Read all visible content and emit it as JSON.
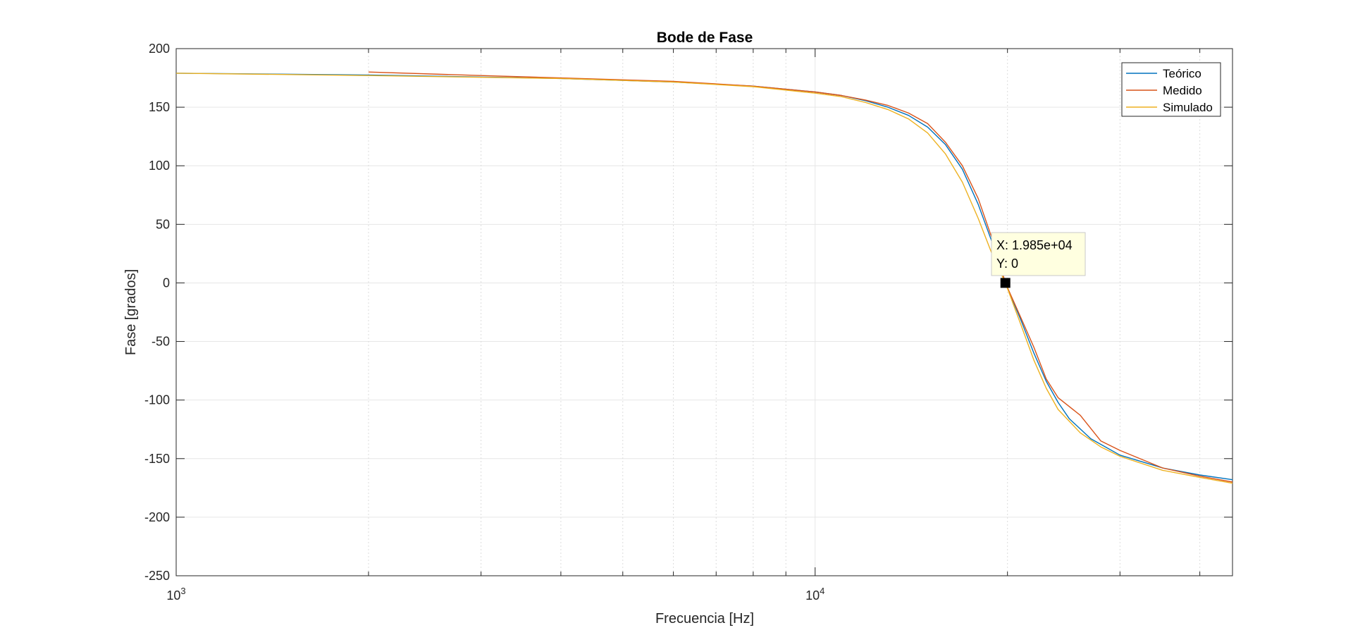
{
  "chart_data": {
    "type": "line",
    "title": "Bode de Fase",
    "xlabel": "Frecuencia [Hz]",
    "ylabel": "Fase [grados]",
    "xscale": "log",
    "xlim": [
      1000,
      45000
    ],
    "ylim": [
      -250,
      200
    ],
    "yticks": [
      200,
      150,
      100,
      50,
      0,
      -50,
      -100,
      -150,
      -200,
      -250
    ],
    "xticks": [
      {
        "value": 1000,
        "base": "10",
        "exp": "3"
      },
      {
        "value": 10000,
        "base": "10",
        "exp": "4"
      }
    ],
    "grid": true,
    "legend_position": "top-right",
    "series": [
      {
        "name": "Teórico",
        "color": "#0072BD",
        "x": [
          1000,
          2000,
          4000,
          6000,
          8000,
          10000,
          11000,
          12000,
          13000,
          14000,
          15000,
          16000,
          17000,
          18000,
          19000,
          19850,
          21000,
          22000,
          23000,
          24000,
          25000,
          27000,
          30000,
          35000,
          40000,
          45000
        ],
        "y": [
          179,
          177.5,
          174.5,
          171.5,
          168,
          163,
          160,
          155.5,
          150,
          143,
          133,
          118,
          97,
          67,
          32,
          0,
          -32,
          -60,
          -84,
          -102,
          -116,
          -133,
          -147,
          -158,
          -164,
          -168
        ]
      },
      {
        "name": "Medido",
        "color": "#D95319",
        "x": [
          2000,
          3000,
          4000,
          6000,
          8000,
          10000,
          11000,
          12000,
          13000,
          14000,
          15000,
          16000,
          17000,
          18000,
          19000,
          19850,
          21000,
          22000,
          23000,
          24000,
          26000,
          28000,
          30000,
          35000,
          40000,
          45000
        ],
        "y": [
          180,
          177,
          175,
          172,
          168,
          163,
          160,
          156,
          151.5,
          145,
          136,
          120,
          100,
          72,
          35,
          0,
          -30,
          -55,
          -82,
          -98,
          -113,
          -135,
          -143,
          -158,
          -165,
          -170
        ]
      },
      {
        "name": "Simulado",
        "color": "#EDB120",
        "x": [
          1000,
          2000,
          4000,
          6000,
          8000,
          10000,
          11000,
          12000,
          13000,
          14000,
          15000,
          16000,
          17000,
          18000,
          19000,
          19850,
          21000,
          22000,
          23000,
          24000,
          26000,
          28000,
          30000,
          35000,
          40000,
          45000
        ],
        "y": [
          179,
          177,
          174.5,
          171.5,
          167.5,
          162,
          159,
          154,
          148,
          140,
          128,
          110,
          86,
          55,
          22,
          0,
          -36,
          -66,
          -90,
          -108,
          -128,
          -140,
          -148,
          -160,
          -166,
          -171
        ]
      }
    ],
    "datatip": {
      "x_text": "X: 1.985e+04",
      "y_text": "Y: 0",
      "x": 19850,
      "y": 0
    }
  },
  "colors": {
    "axis": "#262626",
    "grid": "#e6e6e6",
    "datatip_bg": "#ffffe0"
  }
}
